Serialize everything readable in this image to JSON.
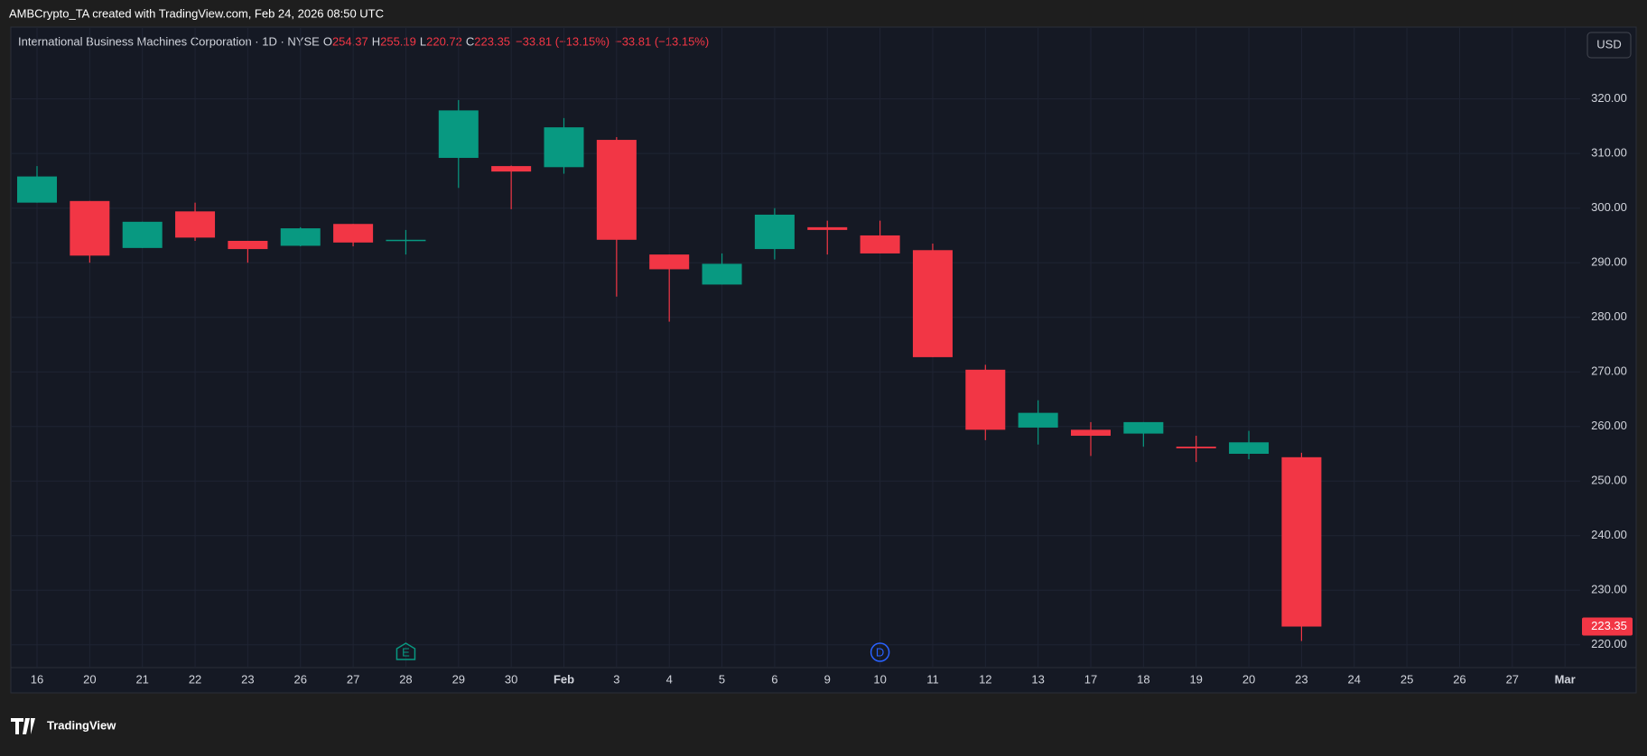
{
  "header": {
    "text": "AMBCrypto_TA created with TradingView.com, Feb 24, 2026 08:50 UTC"
  },
  "footer": {
    "logo": "TradingView"
  },
  "currency_button": "USD",
  "chart_data": {
    "type": "candlestick",
    "title": "International Business Machines Corporation · 1D · NYSE",
    "legend_keys": [
      "O",
      "H",
      "L",
      "C"
    ],
    "change_label": "−33.81 (−13.15%)",
    "categories": [
      "16",
      "20",
      "21",
      "22",
      "23",
      "26",
      "27",
      "28",
      "29",
      "30",
      "Feb",
      "3",
      "4",
      "5",
      "6",
      "9",
      "10",
      "11",
      "12",
      "13",
      "17",
      "18",
      "19",
      "20",
      "23",
      "24",
      "25",
      "26",
      "27",
      "Mar"
    ],
    "open": [
      301.0,
      301.3,
      292.7,
      299.4,
      294.0,
      293.1,
      297.1,
      294.0,
      309.2,
      307.7,
      307.5,
      312.5,
      291.5,
      286.0,
      292.5,
      296.5,
      295.0,
      292.3,
      270.4,
      259.8,
      259.4,
      258.7,
      256.3,
      255.0,
      254.37,
      null,
      null,
      null,
      null,
      null
    ],
    "high": [
      307.7,
      301.3,
      297.5,
      301.0,
      294.0,
      296.5,
      297.1,
      296.0,
      319.8,
      307.8,
      316.5,
      313.0,
      291.5,
      291.7,
      300.0,
      297.7,
      297.7,
      293.5,
      271.3,
      264.8,
      260.8,
      260.8,
      258.3,
      259.2,
      255.19,
      null,
      null,
      null,
      null,
      null
    ],
    "low": [
      301.0,
      290.0,
      292.7,
      294.0,
      290.0,
      293.0,
      293.0,
      291.5,
      303.7,
      299.8,
      306.3,
      283.8,
      279.2,
      286.0,
      290.6,
      291.5,
      291.7,
      272.7,
      257.5,
      256.7,
      254.6,
      256.3,
      253.5,
      254.0,
      220.72,
      null,
      null,
      null,
      null,
      null
    ],
    "close": [
      305.8,
      291.3,
      297.5,
      294.6,
      292.5,
      296.3,
      293.7,
      294.2,
      317.9,
      306.7,
      314.8,
      294.2,
      288.8,
      289.8,
      298.8,
      296.0,
      291.7,
      272.7,
      259.4,
      262.5,
      258.3,
      260.8,
      256.0,
      257.1,
      223.35,
      null,
      null,
      null,
      null,
      null
    ],
    "up_color": "#089981",
    "down_color": "#f23645",
    "ylim": [
      216,
      333
    ],
    "yticks": [
      {
        "value": 220,
        "label": "220.00"
      },
      {
        "value": 230,
        "label": "230.00"
      },
      {
        "value": 240,
        "label": "240.00"
      },
      {
        "value": 250,
        "label": "250.00"
      },
      {
        "value": 260,
        "label": "260.00"
      },
      {
        "value": 270,
        "label": "270.00"
      },
      {
        "value": 280,
        "label": "280.00"
      },
      {
        "value": 290,
        "label": "290.00"
      },
      {
        "value": 300,
        "label": "300.00"
      },
      {
        "value": 310,
        "label": "310.00"
      },
      {
        "value": 320,
        "label": "320.00"
      }
    ],
    "grid": true,
    "events": [
      {
        "label": "E",
        "date": "28"
      },
      {
        "label": "D",
        "date": "10"
      }
    ]
  }
}
